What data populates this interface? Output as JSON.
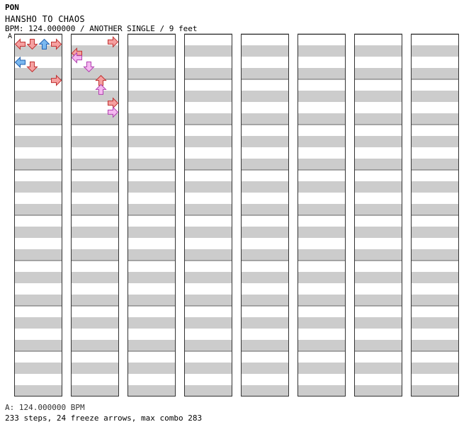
{
  "header": {
    "artist": "PON",
    "title": "HANSHO TO CHAOS",
    "info": "BPM: 124.000000 / ANOTHER SINGLE / 9 feet",
    "bpm_marker": "A"
  },
  "footer": {
    "bpm_line": "A: 124.000000 BPM",
    "stats": "233 steps, 24 freeze arrows, max combo 283"
  },
  "colors": {
    "red_arrow": "#f5a0a0",
    "red_stroke": "#c03030",
    "blue_arrow": "#7ab8f0",
    "blue_stroke": "#2060b0",
    "pink_arrow": "#f5b8f0",
    "pink_stroke": "#b040b0",
    "freeze_fill": "#ccf5cc",
    "freeze_stroke": "#208020",
    "stripe_gray": "#cccccc"
  },
  "chart_data": {
    "type": "step-chart",
    "lanes": [
      "left",
      "down",
      "up",
      "right"
    ],
    "columns": 8,
    "measures_per_column": 8,
    "notes": [
      {
        "col": 1,
        "pos": 0.05,
        "lane": 3,
        "color": "red"
      },
      {
        "col": 1,
        "pos": 0.3,
        "lane": 0,
        "color": "red"
      },
      {
        "col": 1,
        "pos": 0.4,
        "lane": 0,
        "color": "pink"
      },
      {
        "col": 1,
        "pos": 0.6,
        "lane": 1,
        "color": "pink"
      },
      {
        "col": 1,
        "pos": 0.9,
        "lane": 2,
        "color": "red"
      },
      {
        "col": 1,
        "pos": 1.1,
        "lane": 2,
        "color": "pink"
      },
      {
        "col": 1,
        "pos": 1.4,
        "lane": 3,
        "color": "red"
      },
      {
        "col": 1,
        "pos": 1.6,
        "lane": 3,
        "color": "pink"
      },
      {
        "col": 0,
        "pos": 0.1,
        "lane": 0,
        "color": "red"
      },
      {
        "col": 0,
        "pos": 0.1,
        "lane": 1,
        "color": "red"
      },
      {
        "col": 0,
        "pos": 0.1,
        "lane": 2,
        "color": "blue"
      },
      {
        "col": 0,
        "pos": 0.1,
        "lane": 3,
        "color": "red"
      },
      {
        "col": 0,
        "pos": 0.5,
        "lane": 0,
        "color": "blue"
      },
      {
        "col": 0,
        "pos": 0.6,
        "lane": 1,
        "color": "red"
      },
      {
        "col": 0,
        "pos": 0.9,
        "lane": 3,
        "color": "red"
      }
    ]
  }
}
